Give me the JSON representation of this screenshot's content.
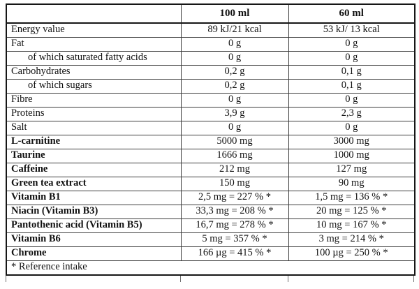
{
  "colors": {
    "background": "#ffffff",
    "text": "#111111",
    "border_outer": "#161616",
    "border_inner": "#3d3d3d"
  },
  "table": {
    "columns": [
      "",
      "100 ml",
      "60 ml"
    ],
    "rows": [
      {
        "label": "Energy value",
        "v100": "89 kJ/21 kcal",
        "v60": "53 kJ/ 13 kcal",
        "bold": false,
        "indent": false
      },
      {
        "label": "Fat",
        "v100": "0 g",
        "v60": "0 g",
        "bold": false,
        "indent": false
      },
      {
        "label": "of which saturated fatty acids",
        "v100": "0 g",
        "v60": "0 g",
        "bold": false,
        "indent": true
      },
      {
        "label": "Carbohydrates",
        "v100": "0,2 g",
        "v60": "0,1 g",
        "bold": false,
        "indent": false
      },
      {
        "label": "of which sugars",
        "v100": "0,2 g",
        "v60": "0,1 g",
        "bold": false,
        "indent": true
      },
      {
        "label": "Fibre",
        "v100": "0 g",
        "v60": "0 g",
        "bold": false,
        "indent": false
      },
      {
        "label": "Proteins",
        "v100": "3,9 g",
        "v60": "2,3 g",
        "bold": false,
        "indent": false
      },
      {
        "label": "Salt",
        "v100": "0 g",
        "v60": "0 g",
        "bold": false,
        "indent": false
      },
      {
        "label": "L-carnitine",
        "v100": "5000 mg",
        "v60": "3000 mg",
        "bold": true,
        "indent": false
      },
      {
        "label": "Taurine",
        "v100": "1666 mg",
        "v60": "1000 mg",
        "bold": true,
        "indent": false
      },
      {
        "label": "Caffeine",
        "v100": "212 mg",
        "v60": "127 mg",
        "bold": true,
        "indent": false
      },
      {
        "label": "Green tea extract",
        "v100": "150 mg",
        "v60": "90 mg",
        "bold": true,
        "indent": false
      },
      {
        "label": "Vitamin B1",
        "v100": "2,5 mg = 227 % *",
        "v60": "1,5 mg = 136 % *",
        "bold": true,
        "indent": false
      },
      {
        "label": "Niacin (Vitamin B3)",
        "v100": "33,3 mg = 208 % *",
        "v60": "20 mg = 125 % *",
        "bold": true,
        "indent": false
      },
      {
        "label": "Pantothenic acid (Vitamin B5)",
        "v100": "16,7 mg = 278 % *",
        "v60": "10 mg = 167 % *",
        "bold": true,
        "indent": false
      },
      {
        "label": "Vitamin B6",
        "v100": "5 mg = 357 % *",
        "v60": "3 mg = 214 % *",
        "bold": true,
        "indent": false
      },
      {
        "label": "Chrome",
        "v100": "166 µg = 415 % *",
        "v60": "100 µg = 250 % *",
        "bold": true,
        "indent": false
      }
    ],
    "footer_note": "* Reference intake"
  }
}
